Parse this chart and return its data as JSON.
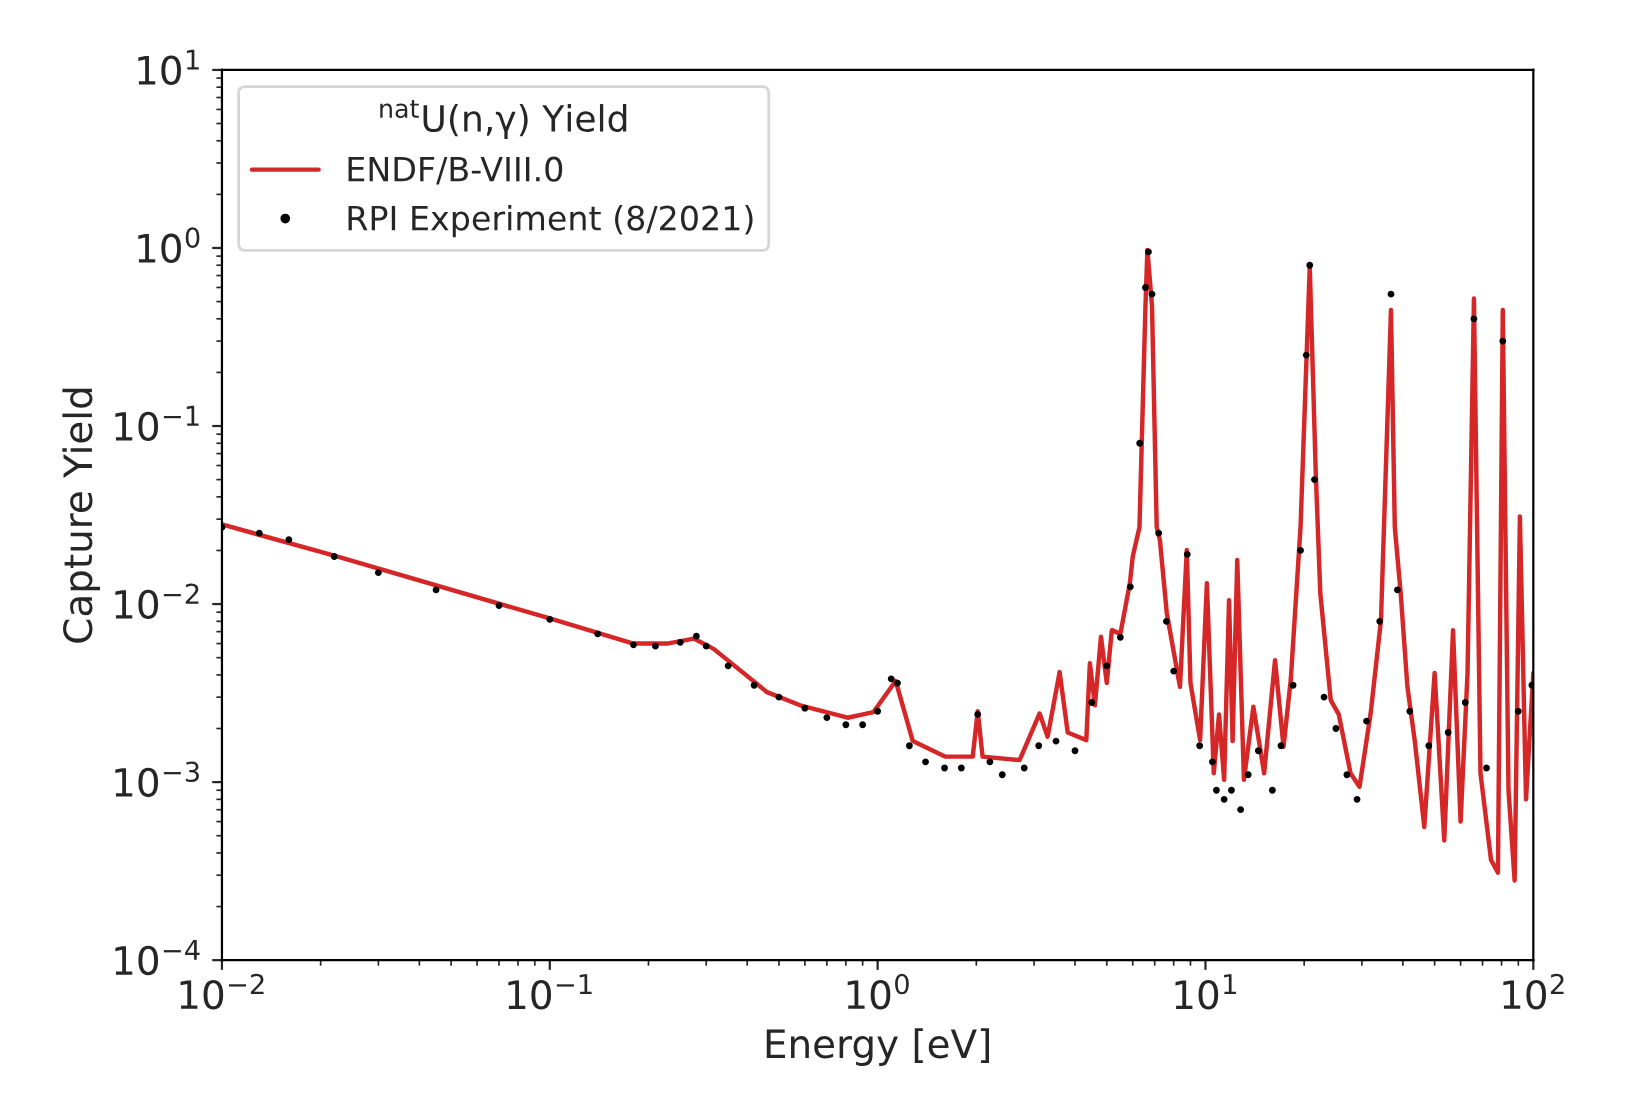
{
  "chart_data": {
    "type": "line",
    "xlabel": "Energy [eV]",
    "ylabel": "Capture Yield",
    "legend_title": "$^{nat}$U(n,γ) Yield",
    "legend": "top left",
    "log": "xy",
    "grid": false,
    "xlim": [
      0.01,
      100
    ],
    "ylim": [
      0.0001,
      10
    ],
    "xticks": [
      {
        "value": 0.01,
        "label": "10$^{−2}$"
      },
      {
        "value": 0.1,
        "label": "10$^{−1}$"
      },
      {
        "value": 1,
        "label": "10$^{0}$"
      },
      {
        "value": 10,
        "label": "10$^{1}$"
      },
      {
        "value": 100,
        "label": "10$^{2}$"
      }
    ],
    "yticks": [
      {
        "value": 0.0001,
        "label": "10$^{−4}$"
      },
      {
        "value": 0.001,
        "label": "10$^{−3}$"
      },
      {
        "value": 0.01,
        "label": "10$^{−2}$"
      },
      {
        "value": 0.1,
        "label": "10$^{−1}$"
      },
      {
        "value": 1,
        "label": "10$^{0}$"
      },
      {
        "value": 10,
        "label": "10$^{1}$"
      }
    ],
    "series": [
      {
        "name": "ENDF/B-VIII.0",
        "color": "#d62728",
        "line_style": "solid",
        "marker": "none",
        "x": [
          0.01,
          0.022,
          0.1,
          0.18,
          0.228,
          0.275,
          0.316,
          0.46,
          0.58,
          0.81,
          0.97,
          1.135,
          1.28,
          1.61,
          1.95,
          2.02,
          2.09,
          2.71,
          3.12,
          3.3,
          3.59,
          3.8,
          4.33,
          4.44,
          4.6,
          4.8,
          5.0,
          5.18,
          5.5,
          5.88,
          6.0,
          6.29,
          6.56,
          6.65,
          6.87,
          7.1,
          7.26,
          7.62,
          8.36,
          8.77,
          9.0,
          9.63,
          10.1,
          10.6,
          11.0,
          11.4,
          11.8,
          12.1,
          12.5,
          13.1,
          14.0,
          15.1,
          16.3,
          17.3,
          18.2,
          19.5,
          20.8,
          21.7,
          22.4,
          24.1,
          25.5,
          27.7,
          29.5,
          31.9,
          34.3,
          36.8,
          37.8,
          39.4,
          41.3,
          43.5,
          46.5,
          50.0,
          53.5,
          56.9,
          60.0,
          63.0,
          65.9,
          69.0,
          74.3,
          78.0,
          80.7,
          84.0,
          87.7,
          91.0,
          95.0,
          100
        ],
        "values": [
          0.028,
          0.0187,
          0.0083,
          0.006,
          0.006,
          0.0064,
          0.0056,
          0.0032,
          0.0027,
          0.0023,
          0.00247,
          0.0037,
          0.0017,
          0.00139,
          0.00139,
          0.0025,
          0.00139,
          0.00133,
          0.00243,
          0.0018,
          0.00415,
          0.0019,
          0.00172,
          0.00465,
          0.0027,
          0.00655,
          0.0036,
          0.00714,
          0.0068,
          0.0131,
          0.0185,
          0.027,
          0.47,
          0.975,
          0.47,
          0.027,
          0.0229,
          0.0089,
          0.00343,
          0.0201,
          0.0036,
          0.00172,
          0.0131,
          0.00112,
          0.0024,
          0.00103,
          0.0105,
          0.0017,
          0.0177,
          0.00103,
          0.00265,
          0.00112,
          0.00484,
          0.00158,
          0.00374,
          0.0272,
          0.785,
          0.054,
          0.0115,
          0.00289,
          0.0024,
          0.00112,
          0.00094,
          0.00243,
          0.0081,
          0.449,
          0.027,
          0.0115,
          0.00343,
          0.0017,
          0.00056,
          0.0041,
          0.00047,
          0.00714,
          0.0006,
          0.0041,
          0.52,
          0.00112,
          0.000365,
          0.00031,
          0.449,
          0.0009,
          0.00028,
          0.031,
          0.0008,
          0.0041
        ]
      },
      {
        "name": "RPI Experiment (8/2021)",
        "type": "scatter",
        "color": "#000000",
        "marker": "circle",
        "x": [
          0.01,
          0.013,
          0.016,
          0.022,
          0.03,
          0.045,
          0.07,
          0.1,
          0.14,
          0.18,
          0.21,
          0.25,
          0.28,
          0.3,
          0.35,
          0.42,
          0.5,
          0.6,
          0.7,
          0.8,
          0.9,
          1.0,
          1.1,
          1.15,
          1.25,
          1.4,
          1.6,
          1.8,
          2.02,
          2.2,
          2.4,
          2.8,
          3.1,
          3.5,
          4.0,
          4.5,
          5.0,
          5.5,
          5.9,
          6.3,
          6.56,
          6.7,
          6.87,
          7.2,
          7.6,
          8.0,
          8.8,
          9.6,
          10.5,
          10.8,
          11.4,
          12.0,
          12.8,
          13.5,
          14.5,
          16.0,
          17.0,
          18.5,
          19.5,
          20.3,
          20.8,
          21.5,
          23.0,
          25.0,
          27.0,
          29.0,
          31.0,
          34.0,
          36.8,
          38.5,
          42.0,
          48.0,
          55.0,
          62.0,
          65.9,
          72.0,
          80.7,
          90.0,
          99.0
        ],
        "values": [
          0.027,
          0.025,
          0.023,
          0.0185,
          0.015,
          0.012,
          0.0098,
          0.0082,
          0.0068,
          0.0059,
          0.0058,
          0.0061,
          0.0066,
          0.0058,
          0.0045,
          0.0035,
          0.003,
          0.0026,
          0.0023,
          0.0021,
          0.0021,
          0.0025,
          0.0038,
          0.0036,
          0.0016,
          0.0013,
          0.0012,
          0.0012,
          0.0024,
          0.0013,
          0.0011,
          0.0012,
          0.0016,
          0.0017,
          0.0015,
          0.0028,
          0.0045,
          0.0065,
          0.0125,
          0.08,
          0.6,
          0.95,
          0.55,
          0.025,
          0.008,
          0.0042,
          0.019,
          0.0016,
          0.0013,
          0.0009,
          0.0008,
          0.0009,
          0.0007,
          0.0011,
          0.0015,
          0.0009,
          0.0016,
          0.0035,
          0.02,
          0.25,
          0.8,
          0.05,
          0.003,
          0.002,
          0.0011,
          0.0008,
          0.0022,
          0.008,
          0.55,
          0.012,
          0.0025,
          0.0016,
          0.0019,
          0.0028,
          0.4,
          0.0012,
          0.3,
          0.0025,
          0.0035
        ]
      }
    ]
  }
}
